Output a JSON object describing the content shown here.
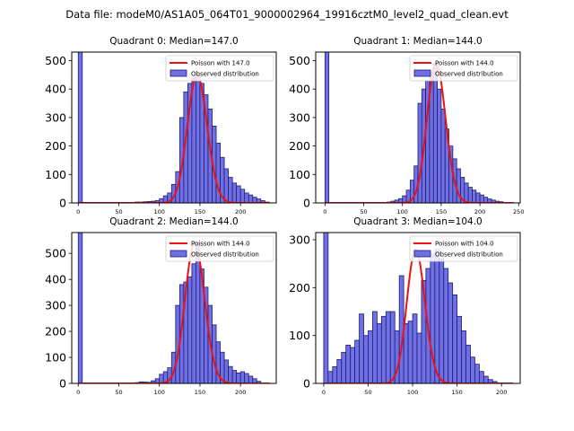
{
  "suptitle": "Data file: modeM0/AS1A05_064T01_9000002964_19916cztM0_level2_quad_clean.evt",
  "colors": {
    "observed_fill": "#6f6fe6",
    "observed_edge": "#1f1f6e",
    "poisson_line": "#ee1111"
  },
  "chart_data": [
    {
      "type": "bar",
      "title": "Quadrant 0: Median=147.0",
      "legend": {
        "placement": "top-right",
        "entries": [
          "Poisson with 147.0",
          "Observed distribution"
        ]
      },
      "median": 147.0,
      "xlim": [
        -8,
        244
      ],
      "ylim": [
        0,
        530
      ],
      "xticks": [
        0,
        50,
        100,
        150,
        200
      ],
      "yticks": [
        0,
        100,
        200,
        300,
        400,
        500
      ],
      "bin_width": 5,
      "bin_starts": [
        0,
        60,
        65,
        70,
        75,
        80,
        85,
        90,
        95,
        100,
        105,
        110,
        115,
        120,
        125,
        130,
        135,
        140,
        145,
        150,
        155,
        160,
        165,
        170,
        175,
        180,
        185,
        190,
        195,
        200,
        205,
        210,
        215,
        220,
        225,
        230
      ],
      "values": [
        530,
        1,
        2,
        3,
        3,
        4,
        5,
        6,
        8,
        15,
        25,
        35,
        65,
        110,
        300,
        390,
        420,
        440,
        450,
        420,
        380,
        330,
        270,
        210,
        160,
        120,
        90,
        70,
        60,
        48,
        35,
        28,
        20,
        14,
        8,
        3
      ]
    },
    {
      "type": "bar",
      "title": "Quadrant 1: Median=144.0",
      "legend": {
        "placement": "top-right",
        "entries": [
          "Poisson with 144.0",
          "Observed distribution"
        ]
      },
      "median": 144.0,
      "xlim": [
        -12,
        252
      ],
      "ylim": [
        0,
        530
      ],
      "xticks": [
        0,
        50,
        100,
        150,
        200,
        250
      ],
      "yticks": [
        0,
        100,
        200,
        300,
        400,
        500
      ],
      "bin_width": 5,
      "bin_starts": [
        0,
        80,
        85,
        90,
        95,
        100,
        105,
        110,
        115,
        120,
        125,
        130,
        135,
        140,
        145,
        150,
        155,
        160,
        165,
        170,
        175,
        180,
        185,
        190,
        195,
        200,
        205,
        210,
        215,
        220,
        225,
        230
      ],
      "values": [
        530,
        3,
        6,
        10,
        15,
        25,
        45,
        80,
        130,
        350,
        400,
        430,
        460,
        490,
        400,
        330,
        260,
        200,
        155,
        120,
        90,
        70,
        55,
        45,
        35,
        28,
        20,
        14,
        10,
        6,
        4,
        2
      ]
    },
    {
      "type": "bar",
      "title": "Quadrant 2: Median=144.0",
      "legend": {
        "placement": "top-right",
        "entries": [
          "Poisson with 144.0",
          "Observed distribution"
        ]
      },
      "median": 144.0,
      "xlim": [
        -8,
        244
      ],
      "ylim": [
        0,
        580
      ],
      "xticks": [
        0,
        50,
        100,
        150,
        200
      ],
      "yticks": [
        0,
        100,
        200,
        300,
        400,
        500
      ],
      "bin_width": 5,
      "bin_starts": [
        0,
        70,
        75,
        80,
        85,
        90,
        95,
        100,
        105,
        110,
        115,
        120,
        125,
        130,
        135,
        140,
        145,
        150,
        155,
        160,
        165,
        170,
        175,
        180,
        185,
        190,
        195,
        200,
        205,
        210,
        215,
        220
      ],
      "values": [
        580,
        3,
        6,
        5,
        4,
        10,
        18,
        35,
        45,
        60,
        120,
        300,
        380,
        390,
        410,
        460,
        540,
        440,
        370,
        300,
        225,
        160,
        120,
        90,
        65,
        50,
        40,
        45,
        38,
        28,
        18,
        8
      ]
    },
    {
      "type": "bar",
      "title": "Quadrant 3: Median=104.0",
      "legend": {
        "placement": "top-right",
        "entries": [
          "Poisson with 104.0",
          "Observed distribution"
        ]
      },
      "median": 104.0,
      "xlim": [
        -9,
        221
      ],
      "ylim": [
        0,
        315
      ],
      "xticks": [
        0,
        50,
        100,
        150,
        200
      ],
      "yticks": [
        0,
        100,
        200,
        300
      ],
      "bin_width": 5,
      "bin_starts": [
        0,
        5,
        10,
        15,
        20,
        25,
        30,
        35,
        40,
        45,
        50,
        55,
        60,
        65,
        70,
        75,
        80,
        85,
        90,
        95,
        100,
        105,
        110,
        115,
        120,
        125,
        130,
        135,
        140,
        145,
        150,
        155,
        160,
        165,
        170,
        175,
        180,
        185,
        190
      ],
      "values": [
        315,
        25,
        35,
        50,
        65,
        80,
        75,
        90,
        145,
        100,
        110,
        150,
        125,
        140,
        150,
        150,
        110,
        225,
        125,
        130,
        145,
        105,
        215,
        240,
        270,
        280,
        260,
        240,
        210,
        185,
        140,
        110,
        80,
        55,
        40,
        25,
        15,
        8,
        4
      ]
    }
  ]
}
